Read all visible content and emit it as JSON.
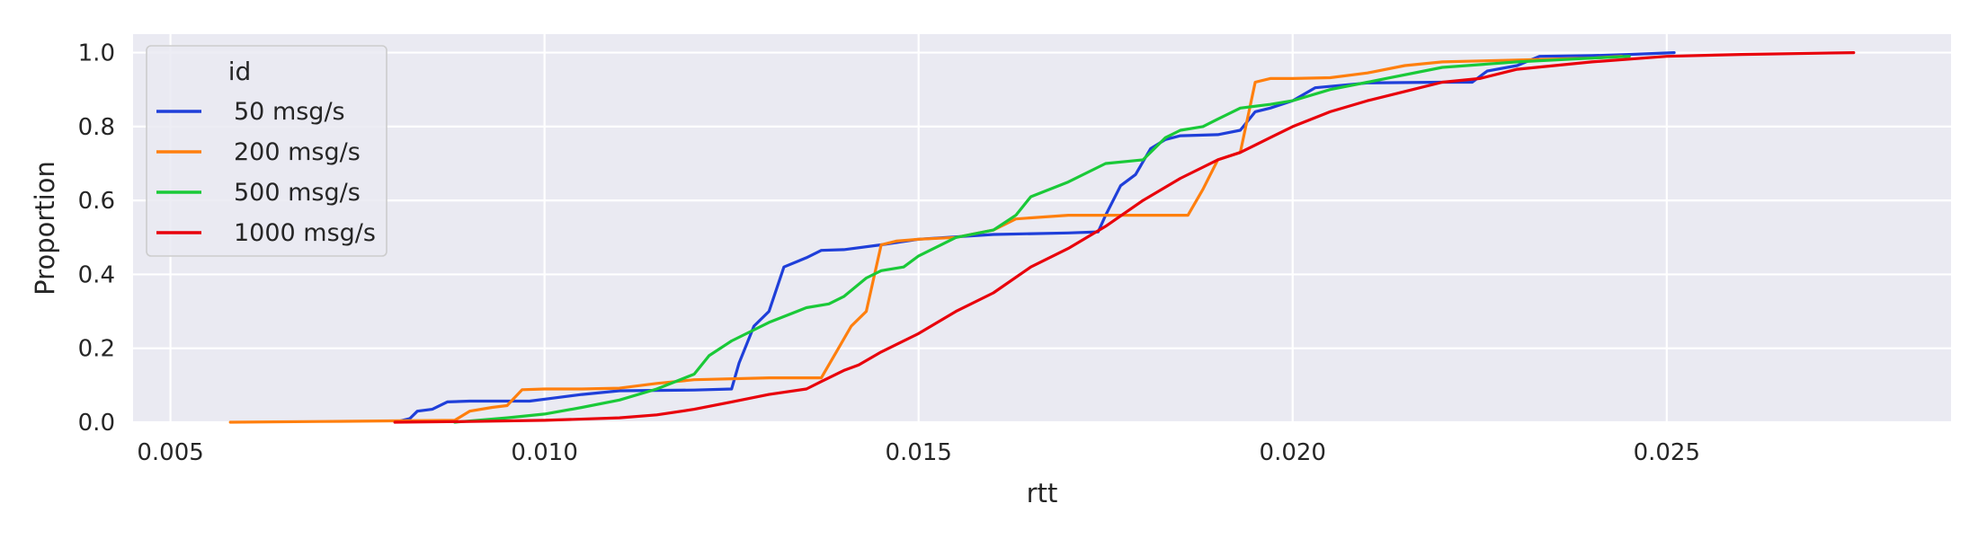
{
  "chart_data": {
    "type": "line",
    "title": "",
    "xlabel": "rtt",
    "ylabel": "Proportion",
    "xlim": [
      0.0045,
      0.0288
    ],
    "ylim": [
      0.0,
      1.05
    ],
    "xticks": [
      0.005,
      0.01,
      0.015,
      0.02,
      0.025
    ],
    "xtick_labels": [
      "0.005",
      "0.010",
      "0.015",
      "0.020",
      "0.025"
    ],
    "yticks": [
      0.0,
      0.2,
      0.4,
      0.6,
      0.8,
      1.0
    ],
    "ytick_labels": [
      "0.0",
      "0.2",
      "0.4",
      "0.6",
      "0.8",
      "1.0"
    ],
    "grid": true,
    "background": "#eaeaf2",
    "legend": {
      "title": "id",
      "placement": "top-left"
    },
    "series": [
      {
        "name": "50 msg/s",
        "color": "#1f3fd9",
        "x": [
          0.008,
          0.0082,
          0.0083,
          0.0085,
          0.0087,
          0.009,
          0.0098,
          0.0101,
          0.0105,
          0.011,
          0.012,
          0.0125,
          0.0126,
          0.0128,
          0.013,
          0.0132,
          0.0135,
          0.0137,
          0.014,
          0.0145,
          0.015,
          0.016,
          0.017,
          0.0174,
          0.0175,
          0.0177,
          0.0179,
          0.0181,
          0.0183,
          0.0185,
          0.019,
          0.0193,
          0.0195,
          0.0197,
          0.02,
          0.0203,
          0.021,
          0.022,
          0.0224,
          0.0226,
          0.023,
          0.0233,
          0.024,
          0.0245,
          0.0251
        ],
        "y": [
          0.0,
          0.01,
          0.03,
          0.035,
          0.055,
          0.057,
          0.057,
          0.065,
          0.075,
          0.085,
          0.087,
          0.09,
          0.16,
          0.26,
          0.3,
          0.42,
          0.445,
          0.465,
          0.467,
          0.48,
          0.495,
          0.508,
          0.512,
          0.515,
          0.56,
          0.64,
          0.67,
          0.74,
          0.765,
          0.775,
          0.778,
          0.79,
          0.84,
          0.85,
          0.87,
          0.905,
          0.918,
          0.92,
          0.92,
          0.95,
          0.965,
          0.99,
          0.992,
          0.995,
          1.0
        ]
      },
      {
        "name": "200 msg/s",
        "color": "#ff7f0e",
        "x": [
          0.0058,
          0.007,
          0.0088,
          0.009,
          0.0093,
          0.0095,
          0.0097,
          0.01,
          0.0105,
          0.011,
          0.0115,
          0.012,
          0.013,
          0.0137,
          0.0139,
          0.0141,
          0.0143,
          0.0145,
          0.0147,
          0.015,
          0.0155,
          0.016,
          0.0163,
          0.017,
          0.018,
          0.0186,
          0.0188,
          0.019,
          0.0193,
          0.0195,
          0.0197,
          0.02,
          0.0205,
          0.021,
          0.0215,
          0.022,
          0.023,
          0.024,
          0.0244
        ],
        "y": [
          0.0,
          0.002,
          0.005,
          0.03,
          0.04,
          0.045,
          0.088,
          0.09,
          0.09,
          0.092,
          0.105,
          0.115,
          0.12,
          0.12,
          0.19,
          0.26,
          0.3,
          0.48,
          0.49,
          0.495,
          0.5,
          0.52,
          0.55,
          0.56,
          0.56,
          0.56,
          0.63,
          0.71,
          0.73,
          0.92,
          0.93,
          0.93,
          0.932,
          0.945,
          0.965,
          0.975,
          0.98,
          0.985,
          0.99
        ]
      },
      {
        "name": "500 msg/s",
        "color": "#1ac938",
        "x": [
          0.0088,
          0.0095,
          0.01,
          0.0105,
          0.011,
          0.0115,
          0.012,
          0.0122,
          0.0125,
          0.013,
          0.0135,
          0.0138,
          0.014,
          0.0143,
          0.0145,
          0.0148,
          0.015,
          0.0155,
          0.016,
          0.0163,
          0.0165,
          0.017,
          0.0175,
          0.018,
          0.0183,
          0.0185,
          0.0188,
          0.019,
          0.0193,
          0.0197,
          0.02,
          0.0205,
          0.021,
          0.022,
          0.023,
          0.024,
          0.0245
        ],
        "y": [
          0.0,
          0.012,
          0.022,
          0.04,
          0.06,
          0.09,
          0.13,
          0.18,
          0.22,
          0.27,
          0.31,
          0.32,
          0.34,
          0.39,
          0.41,
          0.42,
          0.45,
          0.5,
          0.52,
          0.56,
          0.61,
          0.65,
          0.7,
          0.71,
          0.77,
          0.79,
          0.8,
          0.82,
          0.85,
          0.86,
          0.87,
          0.9,
          0.92,
          0.96,
          0.975,
          0.985,
          0.99
        ]
      },
      {
        "name": "1000 msg/s",
        "color": "#e8000b",
        "x": [
          0.008,
          0.009,
          0.01,
          0.011,
          0.0115,
          0.012,
          0.0125,
          0.013,
          0.0135,
          0.0137,
          0.014,
          0.0142,
          0.0145,
          0.015,
          0.0155,
          0.016,
          0.0165,
          0.017,
          0.0175,
          0.018,
          0.0185,
          0.019,
          0.0193,
          0.0197,
          0.02,
          0.0205,
          0.021,
          0.0215,
          0.022,
          0.0225,
          0.023,
          0.024,
          0.025,
          0.026,
          0.0275
        ],
        "y": [
          0.0,
          0.002,
          0.005,
          0.012,
          0.02,
          0.035,
          0.055,
          0.075,
          0.09,
          0.11,
          0.14,
          0.155,
          0.19,
          0.24,
          0.3,
          0.35,
          0.42,
          0.47,
          0.53,
          0.6,
          0.66,
          0.71,
          0.73,
          0.77,
          0.8,
          0.84,
          0.87,
          0.895,
          0.92,
          0.93,
          0.955,
          0.975,
          0.99,
          0.995,
          1.0
        ]
      }
    ]
  }
}
